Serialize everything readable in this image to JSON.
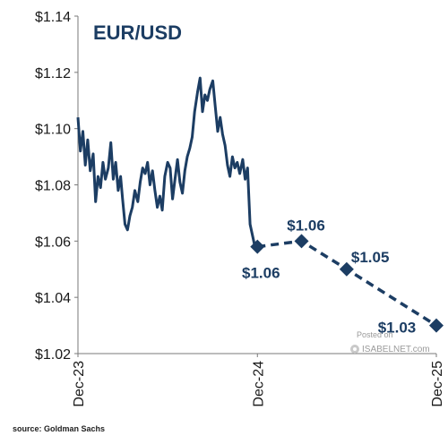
{
  "chart_data": {
    "type": "line",
    "title": "EUR/USD",
    "xlabel": "",
    "ylabel": "",
    "x_ticks": [
      "Dec-23",
      "Dec-24",
      "Dec-25"
    ],
    "y_ticks": [
      "$1.02",
      "$1.04",
      "$1.06",
      "$1.08",
      "$1.10",
      "$1.12",
      "$1.14"
    ],
    "xlim": [
      "2023-12",
      "2025-12"
    ],
    "ylim": [
      1.02,
      1.14
    ],
    "grid": false,
    "colors": {
      "series": "#1c3d63",
      "axis": "#7a7a7a",
      "text": "#1a1a1a"
    },
    "series": [
      {
        "style": "solid",
        "x": [
          "2023-12-01",
          "2023-12-06",
          "2023-12-11",
          "2023-12-16",
          "2023-12-21",
          "2023-12-26",
          "2024-01-01",
          "2024-01-06",
          "2024-01-11",
          "2024-01-16",
          "2024-01-21",
          "2024-01-26",
          "2024-02-01",
          "2024-02-06",
          "2024-02-11",
          "2024-02-16",
          "2024-02-21",
          "2024-02-26",
          "2024-03-01",
          "2024-03-06",
          "2024-03-11",
          "2024-03-16",
          "2024-03-21",
          "2024-03-26",
          "2024-04-01",
          "2024-04-06",
          "2024-04-11",
          "2024-04-16",
          "2024-04-21",
          "2024-04-26",
          "2024-05-01",
          "2024-05-06",
          "2024-05-11",
          "2024-05-16",
          "2024-05-21",
          "2024-05-26",
          "2024-06-01",
          "2024-06-06",
          "2024-06-11",
          "2024-06-16",
          "2024-06-21",
          "2024-06-26",
          "2024-07-01",
          "2024-07-06",
          "2024-07-11",
          "2024-07-16",
          "2024-07-21",
          "2024-07-26",
          "2024-08-01",
          "2024-08-06",
          "2024-08-11",
          "2024-08-16",
          "2024-08-21",
          "2024-08-26",
          "2024-09-01",
          "2024-09-06",
          "2024-09-11",
          "2024-09-16",
          "2024-09-21",
          "2024-09-26",
          "2024-10-01",
          "2024-10-06",
          "2024-10-11",
          "2024-10-16",
          "2024-10-21",
          "2024-10-26",
          "2024-11-01",
          "2024-11-06",
          "2024-11-11",
          "2024-11-16",
          "2024-11-21",
          "2024-11-26"
        ],
        "values": [
          1.104,
          1.092,
          1.099,
          1.087,
          1.096,
          1.085,
          1.091,
          1.074,
          1.083,
          1.079,
          1.088,
          1.082,
          1.086,
          1.095,
          1.082,
          1.088,
          1.078,
          1.083,
          1.075,
          1.066,
          1.064,
          1.069,
          1.072,
          1.078,
          1.074,
          1.081,
          1.086,
          1.084,
          1.088,
          1.08,
          1.085,
          1.078,
          1.072,
          1.076,
          1.071,
          1.083,
          1.088,
          1.086,
          1.075,
          1.082,
          1.089,
          1.081,
          1.077,
          1.085,
          1.09,
          1.093,
          1.097,
          1.106,
          1.113,
          1.118,
          1.106,
          1.112,
          1.11,
          1.114,
          1.117,
          1.108,
          1.099,
          1.104,
          1.098,
          1.094,
          1.087,
          1.083,
          1.09,
          1.086,
          1.088,
          1.084,
          1.089,
          1.082,
          1.086,
          1.066,
          1.062,
          1.058
        ]
      },
      {
        "style": "dashed",
        "markers": "diamond",
        "x": [
          "2024-12",
          "2025-03",
          "2025-06",
          "2025-12"
        ],
        "values": [
          1.058,
          1.06,
          1.05,
          1.03
        ],
        "labels": [
          "$1.06",
          "$1.06",
          "$1.05",
          "$1.03"
        ],
        "label_placement": [
          "below",
          "above",
          "right",
          "above-left"
        ]
      }
    ]
  },
  "watermark": {
    "line1": "Posted on",
    "line2": "ISABELNET.com"
  },
  "source": "source: Goldman Sachs"
}
